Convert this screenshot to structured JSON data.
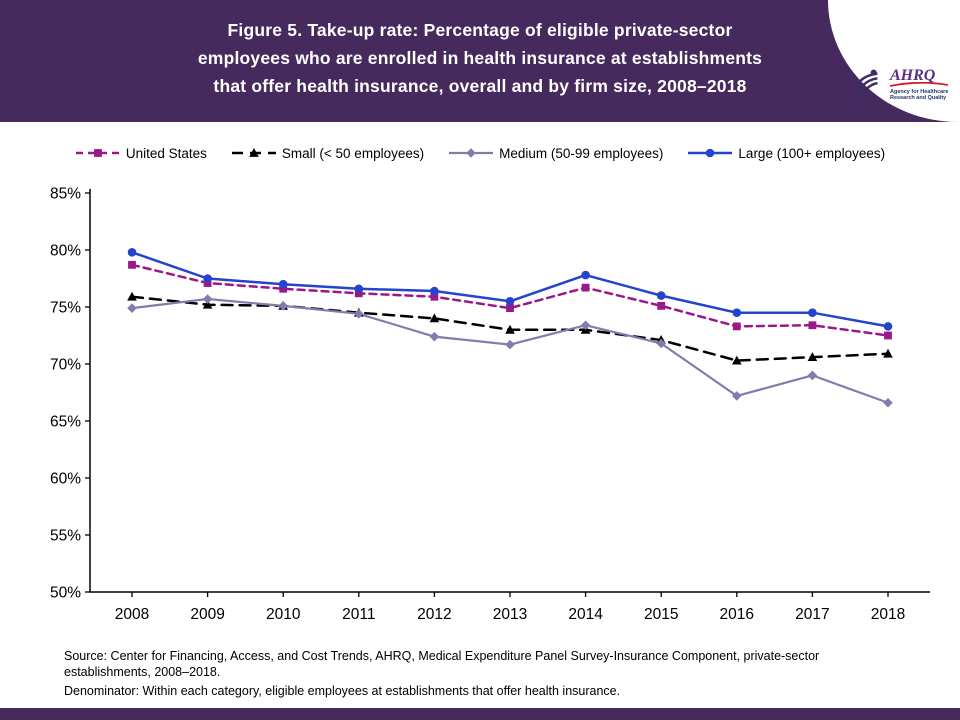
{
  "header": {
    "title_lines": [
      "Figure 5. Take-up rate: Percentage of eligible private-sector",
      "employees who are enrolled in health insurance at establishments",
      "that offer health insurance, overall and by firm size, 2008–2018"
    ],
    "logo": {
      "org": "AHRQ",
      "tagline_line1": "Agency for Healthcare",
      "tagline_line2": "Research and Quality"
    }
  },
  "chart_data": {
    "type": "line",
    "title": "Figure 5. Take-up rate: Percentage of eligible private-sector employees who are enrolled in health insurance at establishments that offer health insurance, overall and by firm size, 2008–2018",
    "x": [
      2008,
      2009,
      2010,
      2011,
      2012,
      2013,
      2014,
      2015,
      2016,
      2017,
      2018
    ],
    "series": [
      {
        "name": "United States",
        "color": "#9b1889",
        "dash": "7,5",
        "width": 2.5,
        "marker": "square",
        "values": [
          78.7,
          77.1,
          76.6,
          76.2,
          75.9,
          74.9,
          76.7,
          75.1,
          73.3,
          73.4,
          72.5
        ]
      },
      {
        "name": "Small (< 50 employees)",
        "color": "#000000",
        "dash": "11,7",
        "width": 2.5,
        "marker": "triangle",
        "values": [
          75.9,
          75.2,
          75.1,
          74.5,
          74.0,
          73.0,
          73.0,
          72.1,
          70.3,
          70.6,
          70.9
        ]
      },
      {
        "name": "Medium (50-99 employees)",
        "color": "#8879ad",
        "dash": "",
        "width": 2.2,
        "marker": "diamond",
        "values": [
          74.9,
          75.7,
          75.1,
          74.4,
          72.4,
          71.7,
          73.4,
          71.8,
          67.2,
          69.0,
          66.6
        ]
      },
      {
        "name": "Large (100+ employees)",
        "color": "#2444cc",
        "dash": "",
        "width": 2.5,
        "marker": "circle",
        "values": [
          79.8,
          77.5,
          77.0,
          76.6,
          76.4,
          75.5,
          77.8,
          76.0,
          74.5,
          74.5,
          73.3
        ]
      }
    ],
    "ylim": [
      50,
      85
    ],
    "ytick_step": 5,
    "ytick_suffix": "%",
    "grid": false,
    "legend_position": "top"
  },
  "footer": {
    "source_text": "Source: Center for Financing, Access, and Cost Trends, AHRQ, Medical Expenditure Panel Survey-Insurance Component, private-sector establishments, 2008–2018.",
    "denominator_text": "Denominator: Within each category, eligible employees at establishments that offer health insurance."
  },
  "colors": {
    "header_bg": "#462a5e",
    "bottom_bar": "#462a5e"
  }
}
